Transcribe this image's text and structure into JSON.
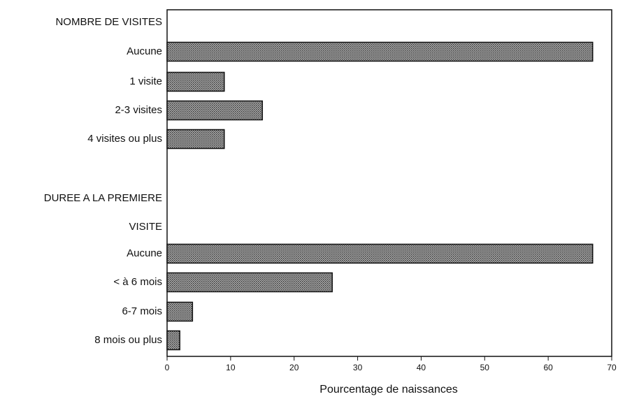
{
  "chart_data": {
    "type": "bar",
    "orientation": "horizontal",
    "xlabel": "Pourcentage de naissances",
    "xlim": [
      0,
      70
    ],
    "xticks": [
      0,
      10,
      20,
      30,
      40,
      50,
      60,
      70
    ],
    "grid": false,
    "bar_color": "#8a8a8a",
    "groups": [
      {
        "title": "NOMBRE DE VISITES",
        "categories": [
          "Aucune",
          "1 visite",
          "2-3 visites",
          "4 visites ou plus"
        ],
        "values": [
          67,
          9,
          15,
          9
        ]
      },
      {
        "title": [
          "DUREE A LA PREMIERE",
          "VISITE"
        ],
        "categories": [
          "Aucune",
          "< à 6 mois",
          "6-7 mois",
          "8 mois ou plus"
        ],
        "values": [
          67,
          26,
          4,
          2
        ]
      }
    ]
  }
}
